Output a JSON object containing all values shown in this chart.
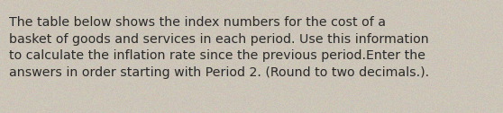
{
  "text": "The table below shows the index numbers for the cost of a\nbasket of goods and services in each period. Use this information\nto calculate the inflation rate since the previous period.Enter the\nanswers in order starting with Period 2. (Round to two decimals.).",
  "background_color": "#ccc5b8",
  "text_color": "#2a2a2a",
  "font_size": 10.2,
  "fig_width": 5.58,
  "fig_height": 1.26,
  "dpi": 100
}
